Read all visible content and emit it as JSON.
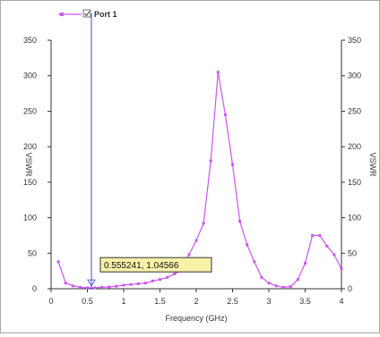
{
  "chart_data": {
    "type": "line",
    "title": "",
    "xlabel": "Frequency (GHz)",
    "ylabel": "VSWR",
    "ylabel_right": "VSWR",
    "xlim": [
      0,
      4
    ],
    "ylim": [
      0,
      350
    ],
    "x_ticks": [
      0,
      0.5,
      1,
      1.5,
      2,
      2.5,
      3,
      3.5,
      4
    ],
    "x_tick_labels": [
      "0",
      "0.5",
      "1",
      "1.5",
      "2",
      "2.5",
      "3",
      "3.5",
      "4"
    ],
    "y_ticks": [
      0,
      50,
      100,
      150,
      200,
      250,
      300,
      350
    ],
    "y_tick_labels": [
      "0",
      "50",
      "100",
      "150",
      "200",
      "250",
      "300",
      "350"
    ],
    "grid": false,
    "legend_position": "top-left",
    "series_color": "#cc55ee",
    "cursor_color": "#6666dd",
    "series": [
      {
        "name": "Port 1",
        "x": [
          0.1,
          0.2,
          0.3,
          0.4,
          0.5,
          0.6,
          0.7,
          0.8,
          0.9,
          1.0,
          1.1,
          1.2,
          1.3,
          1.4,
          1.5,
          1.6,
          1.7,
          1.8,
          1.9,
          2.0,
          2.1,
          2.2,
          2.3,
          2.4,
          2.5,
          2.6,
          2.7,
          2.8,
          2.9,
          3.0,
          3.1,
          3.2,
          3.3,
          3.4,
          3.5,
          3.6,
          3.7,
          3.8,
          3.9,
          4.0
        ],
        "y": [
          38,
          8,
          4,
          2,
          1.2,
          1.3,
          2,
          2.5,
          3.5,
          5,
          6,
          7,
          8,
          11,
          13,
          16,
          21,
          26,
          48,
          68,
          92,
          180,
          305,
          245,
          175,
          95,
          62,
          38,
          16,
          8,
          4,
          2,
          3,
          13,
          36,
          75,
          75,
          60,
          48,
          28
        ]
      }
    ],
    "cursor": {
      "x": 0.555241,
      "y": 1.04566,
      "label": "0.555241, 1.04566"
    }
  }
}
